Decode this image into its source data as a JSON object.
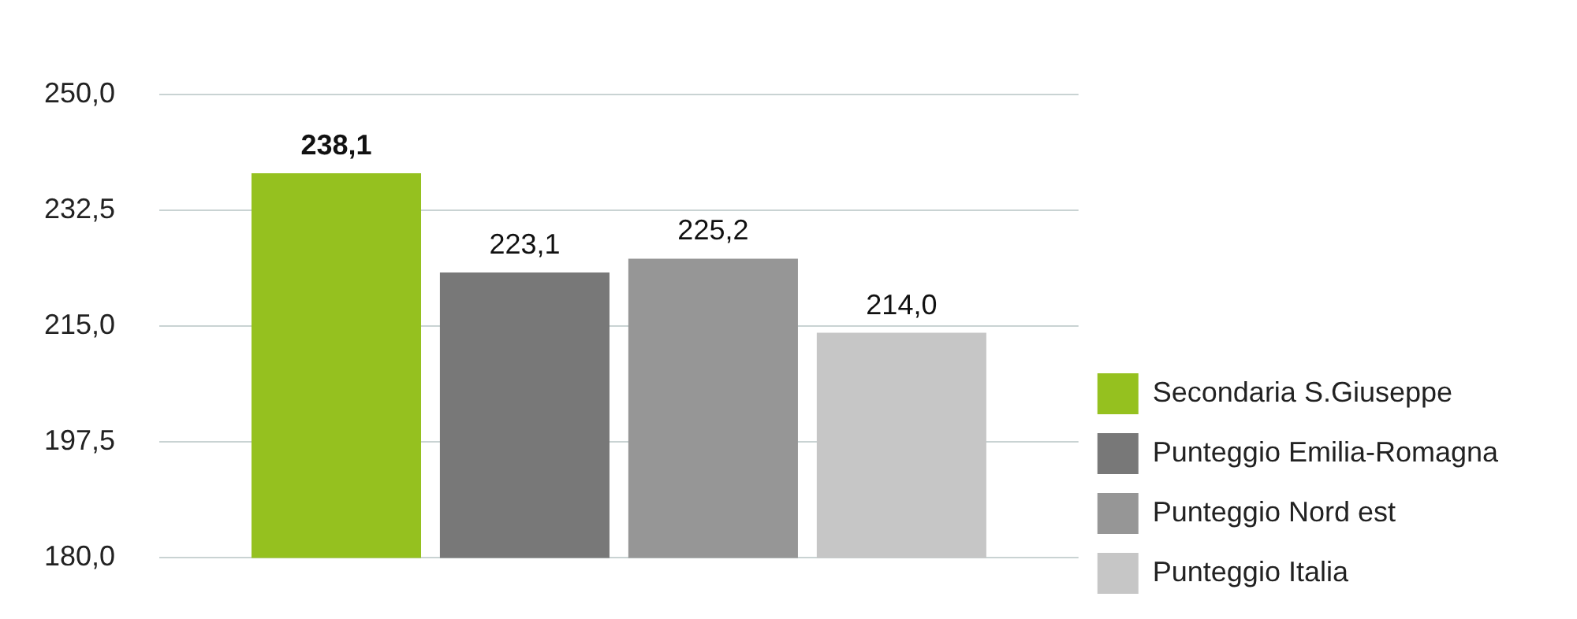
{
  "chart_data": {
    "type": "bar",
    "categories": [
      null
    ],
    "series": [
      {
        "name": "Secondaria S.Giuseppe",
        "color": "#95c11f",
        "values": [
          238.1
        ],
        "value_labels": [
          "238,1"
        ]
      },
      {
        "name": "Punteggio Emilia-Romagna",
        "color": "#787878",
        "values": [
          223.1
        ],
        "value_labels": [
          "223,1"
        ]
      },
      {
        "name": "Punteggio Nord est",
        "color": "#969696",
        "values": [
          225.2
        ],
        "value_labels": [
          "225,2"
        ]
      },
      {
        "name": "Punteggio Italia",
        "color": "#c6c6c6",
        "values": [
          214.0
        ],
        "value_labels": [
          "214,0"
        ]
      }
    ],
    "ylim": [
      180,
      250
    ],
    "yticks": [
      {
        "value": 180,
        "label": "180,0"
      },
      {
        "value": 197.5,
        "label": "197,5"
      },
      {
        "value": 215,
        "label": "215,0"
      },
      {
        "value": 232.5,
        "label": "232,5"
      },
      {
        "value": 250,
        "label": "250,0"
      }
    ],
    "grid": "y",
    "legend": "right"
  }
}
